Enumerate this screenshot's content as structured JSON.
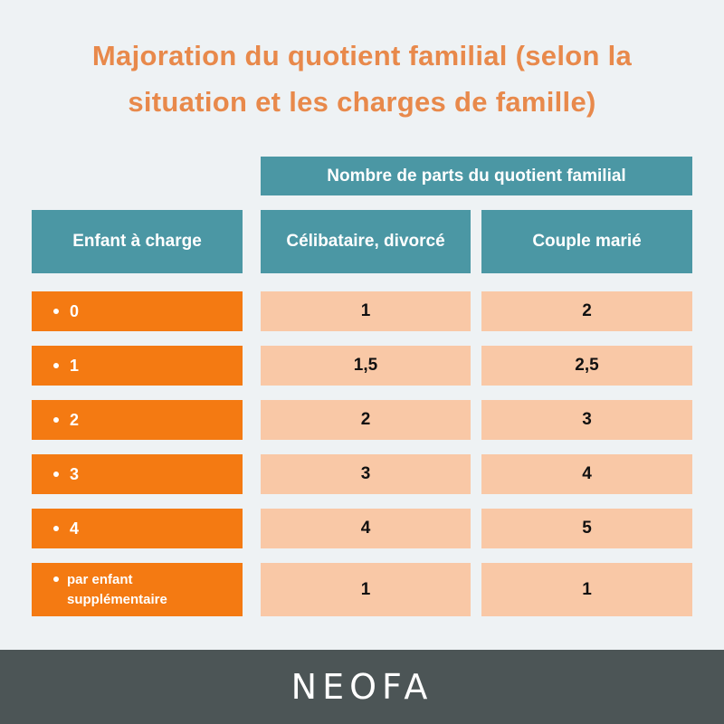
{
  "header": {
    "title": "Majoration du quotient familial (selon la situation et les charges de famille)"
  },
  "table": {
    "group_header": "Nombre de parts du quotient familial",
    "columns": [
      "Enfant à charge",
      "Célibataire, divorcé",
      "Couple marié"
    ],
    "rows": [
      [
        "0",
        "1",
        "2"
      ],
      [
        "1",
        "1,5",
        "2,5"
      ],
      [
        "2",
        "2",
        "3"
      ],
      [
        "3",
        "3",
        "4"
      ],
      [
        "4",
        "4",
        "5"
      ],
      [
        "par enfant supplémentaire",
        "1",
        "1"
      ]
    ]
  },
  "footer": {
    "logo": "NEOFA"
  }
}
